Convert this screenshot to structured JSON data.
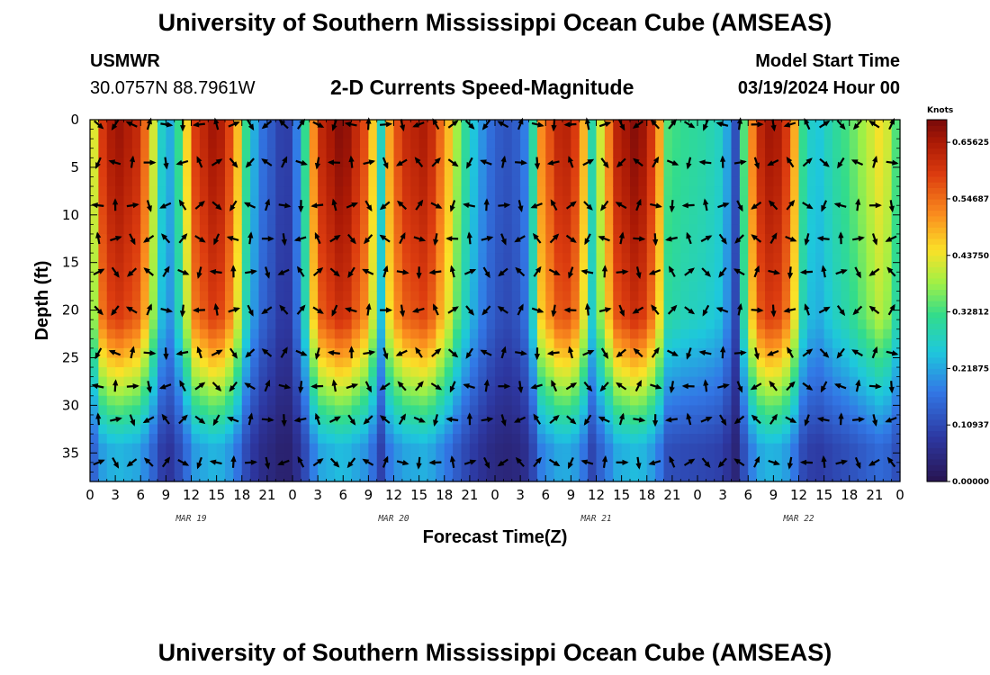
{
  "page": {
    "title_top": "University of Southern Mississippi Ocean Cube (AMSEAS)",
    "title_bottom": "University of Southern Mississippi Ocean Cube (AMSEAS)",
    "station": "USMWR",
    "coords": "30.0757N  88.7961W",
    "subtitle": "2-D Currents Speed-Magnitude",
    "model_start_label": "Model Start Time",
    "model_start_value": "03/19/2024 Hour 00"
  },
  "chart_data": {
    "type": "heatmap",
    "title": "2-D Currents Speed-Magnitude",
    "xlabel": "Forecast Time(Z)",
    "ylabel": "Depth (ft)",
    "x_tick_labels": [
      "0",
      "3",
      "6",
      "9",
      "12",
      "15",
      "18",
      "21",
      "0",
      "3",
      "6",
      "9",
      "12",
      "15",
      "18",
      "21",
      "0",
      "3",
      "6",
      "9",
      "12",
      "15",
      "18",
      "21",
      "0",
      "3",
      "6",
      "9",
      "12",
      "15",
      "18",
      "21",
      "0"
    ],
    "date_labels": [
      "MAR 19",
      "MAR 20",
      "MAR 21",
      "MAR 22"
    ],
    "x_range_hours": [
      0,
      96
    ],
    "y_ticks": [
      0,
      5,
      10,
      15,
      20,
      25,
      30,
      35
    ],
    "y_range_ft": [
      0,
      38
    ],
    "colorbar": {
      "unit": "Knots",
      "range": [
        0,
        0.7
      ],
      "labels": [
        "0.65625",
        "0.54687",
        "0.43750",
        "0.32812",
        "0.21875",
        "0.10937",
        "0.00000"
      ],
      "values": [
        0.65625,
        0.546875,
        0.4375,
        0.328125,
        0.21875,
        0.109375,
        0.0
      ]
    },
    "surface_speed_by_hour": [
      {
        "hour": 0,
        "speed": 0.28
      },
      {
        "hour": 1,
        "speed": 0.58
      },
      {
        "hour": 3,
        "speed": 0.68
      },
      {
        "hour": 6,
        "speed": 0.62
      },
      {
        "hour": 7.5,
        "speed": 0.42
      },
      {
        "hour": 8.2,
        "speed": 0.3
      },
      {
        "hour": 9.2,
        "speed": 0.2
      },
      {
        "hour": 10.5,
        "speed": 0.32
      },
      {
        "hour": 12.5,
        "speed": 0.6
      },
      {
        "hour": 15,
        "speed": 0.68
      },
      {
        "hour": 17,
        "speed": 0.56
      },
      {
        "hour": 18.5,
        "speed": 0.32
      },
      {
        "hour": 20,
        "speed": 0.18
      },
      {
        "hour": 22,
        "speed": 0.12
      },
      {
        "hour": 23,
        "speed": 0.08
      },
      {
        "hour": 24,
        "speed": 0.11
      },
      {
        "hour": 25.5,
        "speed": 0.32
      },
      {
        "hour": 27,
        "speed": 0.62
      },
      {
        "hour": 30,
        "speed": 0.7
      },
      {
        "hour": 33,
        "speed": 0.56
      },
      {
        "hour": 34.5,
        "speed": 0.28
      },
      {
        "hour": 35.5,
        "speed": 0.5
      },
      {
        "hour": 37,
        "speed": 0.62
      },
      {
        "hour": 40,
        "speed": 0.66
      },
      {
        "hour": 42.5,
        "speed": 0.48
      },
      {
        "hour": 44,
        "speed": 0.34
      },
      {
        "hour": 46,
        "speed": 0.22
      },
      {
        "hour": 48,
        "speed": 0.14
      },
      {
        "hour": 50,
        "speed": 0.12
      },
      {
        "hour": 52,
        "speed": 0.2
      },
      {
        "hour": 53.5,
        "speed": 0.52
      },
      {
        "hour": 56,
        "speed": 0.66
      },
      {
        "hour": 58,
        "speed": 0.58
      },
      {
        "hour": 59.5,
        "speed": 0.3
      },
      {
        "hour": 61,
        "speed": 0.48
      },
      {
        "hour": 62.5,
        "speed": 0.64
      },
      {
        "hour": 65,
        "speed": 0.7
      },
      {
        "hour": 67,
        "speed": 0.58
      },
      {
        "hour": 68.5,
        "speed": 0.34
      },
      {
        "hour": 70,
        "speed": 0.32
      },
      {
        "hour": 73,
        "speed": 0.3
      },
      {
        "hour": 75,
        "speed": 0.27
      },
      {
        "hour": 76.5,
        "speed": 0.12
      },
      {
        "hour": 77.5,
        "speed": 0.34
      },
      {
        "hour": 79,
        "speed": 0.62
      },
      {
        "hour": 81,
        "speed": 0.68
      },
      {
        "hour": 83,
        "speed": 0.58
      },
      {
        "hour": 84.5,
        "speed": 0.32
      },
      {
        "hour": 86,
        "speed": 0.24
      },
      {
        "hour": 88,
        "speed": 0.3
      },
      {
        "hour": 90,
        "speed": 0.34
      },
      {
        "hour": 92,
        "speed": 0.4
      },
      {
        "hour": 94,
        "speed": 0.46
      },
      {
        "hour": 96,
        "speed": 0.3
      }
    ],
    "arrows": {
      "hour_step": 2,
      "depth_rows_ft": [
        0.5,
        4.5,
        9,
        12.5,
        16,
        20,
        24.5,
        28,
        31.5,
        36
      ]
    }
  }
}
